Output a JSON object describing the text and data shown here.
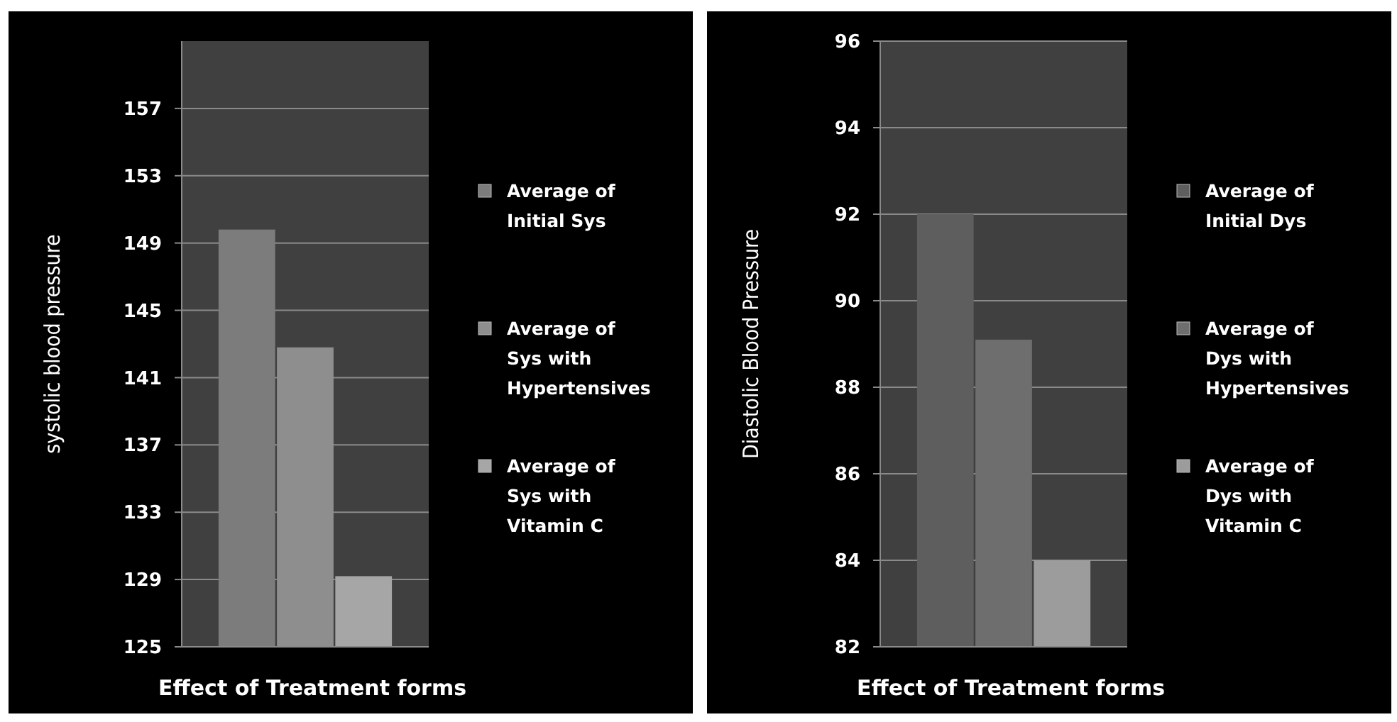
{
  "chart_data": [
    {
      "type": "bar",
      "xlabel": "Effect of Treatment forms",
      "ylabel": "systolic blood pressure",
      "categories": [
        null
      ],
      "ylim": [
        125,
        161
      ],
      "yticks": [
        125,
        129,
        133,
        137,
        141,
        145,
        149,
        153,
        157
      ],
      "grid": "y",
      "legend": "right",
      "series": [
        {
          "name": "Average of Initial Sys",
          "color": "#7c7c7c",
          "values": [
            149.8
          ]
        },
        {
          "name": "Average of Sys with Hypertensives",
          "color": "#8e8e8e",
          "values": [
            142.8
          ]
        },
        {
          "name": "Average of Sys with Vitamin C",
          "color": "#a6a6a6",
          "values": [
            129.2
          ]
        }
      ]
    },
    {
      "type": "bar",
      "xlabel": "Effect of Treatment forms",
      "ylabel": "Diastolic Blood Pressure",
      "categories": [
        null
      ],
      "ylim": [
        82,
        96
      ],
      "yticks": [
        82,
        84,
        86,
        88,
        90,
        92,
        94,
        96
      ],
      "grid": "y",
      "legend": "right",
      "series": [
        {
          "name": "Average of Initial Dys",
          "color": "#5e5e5e",
          "values": [
            92.0
          ]
        },
        {
          "name": "Average of Dys with Hypertensives",
          "color": "#6e6e6e",
          "values": [
            89.1
          ]
        },
        {
          "name": "Average of Dys with Vitamin C",
          "color": "#9c9c9c",
          "values": [
            84.0
          ]
        }
      ]
    }
  ]
}
